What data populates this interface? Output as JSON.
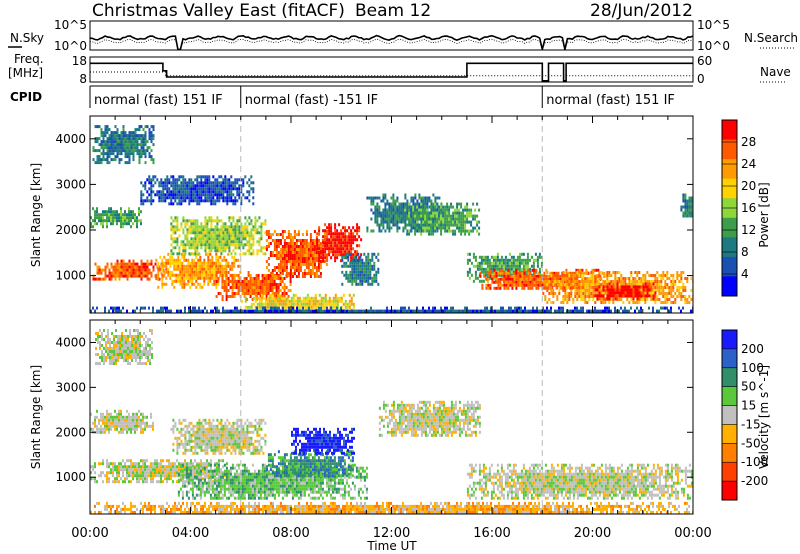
{
  "header": {
    "title": "Christmas Valley East (fitACF)",
    "beam": "Beam 12",
    "date": "28/Jun/2012"
  },
  "top_panels": {
    "nsky_label": "N.Sky",
    "nsearch_label": "N.Search",
    "freq_label": "Freq.",
    "freq_unit": "[MHz]",
    "nave_label": "Nave",
    "cpid_label": "CPID",
    "noise_left_ticks": [
      "10^5",
      "10^0"
    ],
    "noise_right_ticks": [
      "10^5",
      "10^0"
    ],
    "freq_ticks": [
      "18",
      "8"
    ],
    "nave_ticks": [
      "60",
      "0"
    ],
    "cpid_segments": [
      {
        "label": "normal (fast) 151 IF",
        "start_hour": 0,
        "end_hour": 6
      },
      {
        "label": "normal (fast) -151 IF",
        "start_hour": 6,
        "end_hour": 18
      },
      {
        "label": "normal (fast) 151 IF",
        "start_hour": 18,
        "end_hour": 24
      }
    ]
  },
  "colors": {
    "power": [
      "#0000ff",
      "#1a4fb3",
      "#1d7a80",
      "#3c9e4a",
      "#8fd63a",
      "#ffd200",
      "#ff9a00",
      "#ff5a00",
      "#ff0000"
    ],
    "velocity": [
      "#1a1aff",
      "#2a62c8",
      "#2e8f6a",
      "#59c93b",
      "#c0c0c0",
      "#ffb000",
      "#ff8000",
      "#ff4000",
      "#ff0000"
    ]
  },
  "chart_data": [
    {
      "type": "heatmap",
      "name": "power",
      "ylabel": "Slant Range [km]",
      "xlabel": "",
      "xlim_hours": [
        0,
        24
      ],
      "ylim_km": [
        180,
        4500
      ],
      "yticks": [
        1000,
        2000,
        3000,
        4000
      ],
      "colorbar_label": "Power [dB]",
      "colorbar_ticks": [
        "28",
        "24",
        "20",
        "16",
        "12",
        "8",
        "4"
      ],
      "features": [
        {
          "t0": 0.1,
          "t1": 2.9,
          "r0": 900,
          "r1": 1350,
          "level": 7
        },
        {
          "t0": 2.6,
          "t1": 6.0,
          "r0": 750,
          "r1": 1500,
          "level": 6
        },
        {
          "t0": 3.2,
          "t1": 7.0,
          "r0": 1450,
          "r1": 2300,
          "level": 4
        },
        {
          "t0": 5.0,
          "t1": 8.0,
          "r0": 500,
          "r1": 1100,
          "level": 7
        },
        {
          "t0": 7.0,
          "t1": 9.5,
          "r0": 1000,
          "r1": 2000,
          "level": 7
        },
        {
          "t0": 9.0,
          "t1": 10.8,
          "r0": 1300,
          "r1": 2150,
          "level": 8
        },
        {
          "t0": 6.0,
          "t1": 10.5,
          "r0": 250,
          "r1": 600,
          "level": 5
        },
        {
          "t0": 0.0,
          "t1": 2.0,
          "r0": 2100,
          "r1": 2500,
          "level": 3
        },
        {
          "t0": 0.1,
          "t1": 2.5,
          "r0": 3500,
          "r1": 4300,
          "level": 2
        },
        {
          "t0": 2.0,
          "t1": 6.5,
          "r0": 2600,
          "r1": 3200,
          "level": 1
        },
        {
          "t0": 10.0,
          "t1": 11.5,
          "r0": 800,
          "r1": 1500,
          "level": 2
        },
        {
          "t0": 11.0,
          "t1": 14.0,
          "r0": 2000,
          "r1": 2800,
          "level": 2
        },
        {
          "t0": 12.5,
          "t1": 15.5,
          "r0": 1900,
          "r1": 2600,
          "level": 3
        },
        {
          "t0": 15.0,
          "t1": 18.0,
          "r0": 900,
          "r1": 1500,
          "level": 3
        },
        {
          "t0": 15.5,
          "t1": 20.5,
          "r0": 700,
          "r1": 1150,
          "level": 7
        },
        {
          "t0": 18.0,
          "t1": 24.0,
          "r0": 400,
          "r1": 1100,
          "level": 6
        },
        {
          "t0": 20.0,
          "t1": 22.5,
          "r0": 500,
          "r1": 850,
          "level": 8
        },
        {
          "t0": 23.5,
          "t1": 24.0,
          "r0": 2300,
          "r1": 2800,
          "level": 2
        },
        {
          "t0": 0.0,
          "t1": 24.0,
          "r0": 180,
          "r1": 320,
          "level": 1
        }
      ]
    },
    {
      "type": "heatmap",
      "name": "velocity",
      "ylabel": "Slant Range [km]",
      "xlabel": "Time UT",
      "xlim_hours": [
        0,
        24
      ],
      "ylim_km": [
        180,
        4500
      ],
      "yticks": [
        1000,
        2000,
        3000,
        4000
      ],
      "xticks": [
        "00:00",
        "04:00",
        "08:00",
        "12:00",
        "16:00",
        "20:00",
        "00:00"
      ],
      "colorbar_label": "Velocity [m s^-1]",
      "colorbar_ticks": [
        "200",
        "100",
        "50",
        "15",
        "-15",
        "-50",
        "-100",
        "-200"
      ],
      "features": [
        {
          "t0": 0.0,
          "t1": 5.5,
          "r0": 900,
          "r1": 1400,
          "level": 4
        },
        {
          "t0": 0.0,
          "t1": 2.5,
          "r0": 2000,
          "r1": 2500,
          "level": 4
        },
        {
          "t0": 0.2,
          "t1": 2.5,
          "r0": 3500,
          "r1": 4300,
          "level": 4
        },
        {
          "t0": 3.2,
          "t1": 7.0,
          "r0": 1500,
          "r1": 2300,
          "level": 4
        },
        {
          "t0": 3.5,
          "t1": 11.0,
          "r0": 500,
          "r1": 1300,
          "level": 3
        },
        {
          "t0": 7.0,
          "t1": 10.5,
          "r0": 1000,
          "r1": 1600,
          "level": 2
        },
        {
          "t0": 8.0,
          "t1": 10.5,
          "r0": 1500,
          "r1": 2100,
          "level": 0
        },
        {
          "t0": 11.5,
          "t1": 15.5,
          "r0": 1900,
          "r1": 2700,
          "level": 4
        },
        {
          "t0": 15.0,
          "t1": 24.0,
          "r0": 500,
          "r1": 1300,
          "level": 4
        },
        {
          "t0": 0.0,
          "t1": 24.0,
          "r0": 180,
          "r1": 450,
          "level": 5
        }
      ]
    }
  ]
}
